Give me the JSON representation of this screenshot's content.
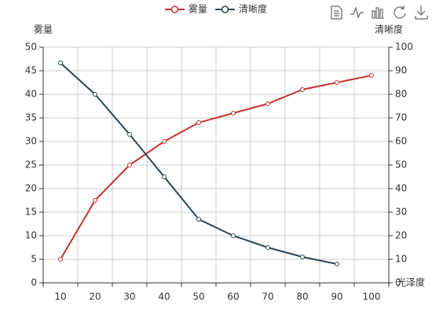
{
  "chart_data": {
    "type": "line",
    "categories": [
      "10",
      "20",
      "30",
      "40",
      "50",
      "60",
      "70",
      "80",
      "90",
      "100"
    ],
    "x_axis_label": "光泽度",
    "y_axis_label": "雾量",
    "y2_axis_label": "清晰度",
    "series": [
      {
        "name": "雾量",
        "color": "#c23531",
        "values": [
          5,
          17.5,
          25,
          30,
          34,
          36,
          38,
          41,
          42.5,
          44
        ]
      },
      {
        "name": "清晰度",
        "color": "#2f4554",
        "axis": "y2",
        "values": [
          93.3,
          80,
          63,
          45,
          27,
          20,
          15,
          11,
          8,
          null
        ]
      }
    ],
    "ylim": [
      0,
      50
    ],
    "yticks": [
      0,
      5,
      10,
      15,
      20,
      25,
      30,
      35,
      40,
      45,
      50
    ],
    "y2lim": [
      0,
      100
    ],
    "y2ticks": [
      0,
      10,
      20,
      30,
      40,
      50,
      60,
      70,
      80,
      90,
      100
    ],
    "grid": true
  }
}
